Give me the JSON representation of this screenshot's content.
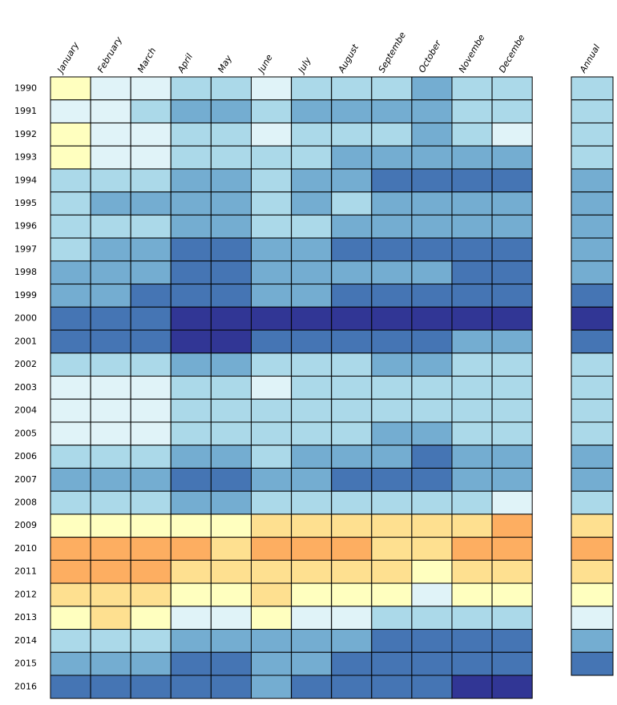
{
  "chart_data": {
    "type": "heatmap",
    "categories": [
      "January",
      "February",
      "March",
      "April",
      "May",
      "June",
      "July",
      "August",
      "Septembe",
      "October",
      "Novembe",
      "Decembe"
    ],
    "annual_label": "Annual",
    "rows": [
      "1990",
      "1991",
      "1992",
      "1993",
      "1994",
      "1995",
      "1996",
      "1997",
      "1998",
      "1999",
      "2000",
      "2001",
      "2002",
      "2003",
      "2004",
      "2005",
      "2006",
      "2007",
      "2008",
      "2009",
      "2010",
      "2011",
      "2012",
      "2013",
      "2014",
      "2015",
      "2016"
    ],
    "colors": [
      [
        "#ffffbf",
        "#e0f3f8",
        "#e0f3f8",
        "#abd9e9",
        "#abd9e9",
        "#e0f3f8",
        "#abd9e9",
        "#abd9e9",
        "#abd9e9",
        "#74add1",
        "#abd9e9",
        "#abd9e9"
      ],
      [
        "#e0f3f8",
        "#e0f3f8",
        "#abd9e9",
        "#74add1",
        "#74add1",
        "#abd9e9",
        "#74add1",
        "#74add1",
        "#74add1",
        "#74add1",
        "#abd9e9",
        "#abd9e9"
      ],
      [
        "#ffffbf",
        "#e0f3f8",
        "#e0f3f8",
        "#abd9e9",
        "#abd9e9",
        "#e0f3f8",
        "#abd9e9",
        "#abd9e9",
        "#abd9e9",
        "#74add1",
        "#abd9e9",
        "#e0f3f8"
      ],
      [
        "#ffffbf",
        "#e0f3f8",
        "#e0f3f8",
        "#abd9e9",
        "#abd9e9",
        "#abd9e9",
        "#abd9e9",
        "#74add1",
        "#74add1",
        "#74add1",
        "#74add1",
        "#74add1"
      ],
      [
        "#abd9e9",
        "#abd9e9",
        "#abd9e9",
        "#74add1",
        "#74add1",
        "#abd9e9",
        "#74add1",
        "#74add1",
        "#4575b4",
        "#4575b4",
        "#4575b4",
        "#4575b4"
      ],
      [
        "#abd9e9",
        "#74add1",
        "#74add1",
        "#74add1",
        "#74add1",
        "#abd9e9",
        "#74add1",
        "#abd9e9",
        "#74add1",
        "#74add1",
        "#74add1",
        "#74add1"
      ],
      [
        "#abd9e9",
        "#abd9e9",
        "#abd9e9",
        "#74add1",
        "#74add1",
        "#abd9e9",
        "#abd9e9",
        "#74add1",
        "#74add1",
        "#74add1",
        "#74add1",
        "#74add1"
      ],
      [
        "#abd9e9",
        "#74add1",
        "#74add1",
        "#4575b4",
        "#4575b4",
        "#74add1",
        "#74add1",
        "#4575b4",
        "#4575b4",
        "#4575b4",
        "#4575b4",
        "#4575b4"
      ],
      [
        "#74add1",
        "#74add1",
        "#74add1",
        "#4575b4",
        "#4575b4",
        "#74add1",
        "#74add1",
        "#74add1",
        "#74add1",
        "#74add1",
        "#4575b4",
        "#4575b4"
      ],
      [
        "#74add1",
        "#74add1",
        "#4575b4",
        "#4575b4",
        "#4575b4",
        "#74add1",
        "#74add1",
        "#4575b4",
        "#4575b4",
        "#4575b4",
        "#4575b4",
        "#4575b4"
      ],
      [
        "#4575b4",
        "#4575b4",
        "#4575b4",
        "#313695",
        "#313695",
        "#313695",
        "#313695",
        "#313695",
        "#313695",
        "#313695",
        "#313695",
        "#313695"
      ],
      [
        "#4575b4",
        "#4575b4",
        "#4575b4",
        "#313695",
        "#313695",
        "#4575b4",
        "#4575b4",
        "#4575b4",
        "#4575b4",
        "#4575b4",
        "#74add1",
        "#74add1"
      ],
      [
        "#abd9e9",
        "#abd9e9",
        "#abd9e9",
        "#74add1",
        "#74add1",
        "#abd9e9",
        "#abd9e9",
        "#abd9e9",
        "#74add1",
        "#74add1",
        "#abd9e9",
        "#abd9e9"
      ],
      [
        "#e0f3f8",
        "#e0f3f8",
        "#e0f3f8",
        "#abd9e9",
        "#abd9e9",
        "#e0f3f8",
        "#abd9e9",
        "#abd9e9",
        "#abd9e9",
        "#abd9e9",
        "#abd9e9",
        "#abd9e9"
      ],
      [
        "#e0f3f8",
        "#e0f3f8",
        "#e0f3f8",
        "#abd9e9",
        "#abd9e9",
        "#abd9e9",
        "#abd9e9",
        "#abd9e9",
        "#abd9e9",
        "#abd9e9",
        "#abd9e9",
        "#abd9e9"
      ],
      [
        "#e0f3f8",
        "#e0f3f8",
        "#e0f3f8",
        "#abd9e9",
        "#abd9e9",
        "#abd9e9",
        "#abd9e9",
        "#abd9e9",
        "#74add1",
        "#74add1",
        "#abd9e9",
        "#abd9e9"
      ],
      [
        "#abd9e9",
        "#abd9e9",
        "#abd9e9",
        "#74add1",
        "#74add1",
        "#abd9e9",
        "#74add1",
        "#74add1",
        "#74add1",
        "#4575b4",
        "#74add1",
        "#74add1"
      ],
      [
        "#74add1",
        "#74add1",
        "#74add1",
        "#4575b4",
        "#4575b4",
        "#74add1",
        "#74add1",
        "#4575b4",
        "#4575b4",
        "#4575b4",
        "#74add1",
        "#74add1"
      ],
      [
        "#abd9e9",
        "#abd9e9",
        "#abd9e9",
        "#74add1",
        "#74add1",
        "#abd9e9",
        "#abd9e9",
        "#abd9e9",
        "#abd9e9",
        "#abd9e9",
        "#abd9e9",
        "#e0f3f8"
      ],
      [
        "#ffffbf",
        "#ffffbf",
        "#ffffbf",
        "#ffffbf",
        "#ffffbf",
        "#fee090",
        "#fee090",
        "#fee090",
        "#fee090",
        "#fee090",
        "#fee090",
        "#fdae61"
      ],
      [
        "#fdae61",
        "#fdae61",
        "#fdae61",
        "#fdae61",
        "#fee090",
        "#fdae61",
        "#fdae61",
        "#fdae61",
        "#fee090",
        "#fee090",
        "#fdae61",
        "#fdae61"
      ],
      [
        "#fdae61",
        "#fdae61",
        "#fdae61",
        "#fee090",
        "#fee090",
        "#fee090",
        "#fee090",
        "#fee090",
        "#fee090",
        "#ffffbf",
        "#fee090",
        "#fee090"
      ],
      [
        "#fee090",
        "#fee090",
        "#fee090",
        "#ffffbf",
        "#ffffbf",
        "#fee090",
        "#ffffbf",
        "#ffffbf",
        "#ffffbf",
        "#e0f3f8",
        "#ffffbf",
        "#ffffbf"
      ],
      [
        "#ffffbf",
        "#fee090",
        "#ffffbf",
        "#e0f3f8",
        "#e0f3f8",
        "#ffffbf",
        "#e0f3f8",
        "#e0f3f8",
        "#abd9e9",
        "#abd9e9",
        "#abd9e9",
        "#abd9e9"
      ],
      [
        "#abd9e9",
        "#abd9e9",
        "#abd9e9",
        "#74add1",
        "#74add1",
        "#74add1",
        "#74add1",
        "#74add1",
        "#4575b4",
        "#4575b4",
        "#4575b4",
        "#4575b4"
      ],
      [
        "#74add1",
        "#74add1",
        "#74add1",
        "#4575b4",
        "#4575b4",
        "#74add1",
        "#74add1",
        "#4575b4",
        "#4575b4",
        "#4575b4",
        "#4575b4",
        "#4575b4"
      ],
      [
        "#4575b4",
        "#4575b4",
        "#4575b4",
        "#4575b4",
        "#4575b4",
        "#74add1",
        "#4575b4",
        "#4575b4",
        "#4575b4",
        "#4575b4",
        "#313695",
        "#313695"
      ]
    ],
    "annual_colors": [
      "#abd9e9",
      "#abd9e9",
      "#abd9e9",
      "#abd9e9",
      "#74add1",
      "#74add1",
      "#74add1",
      "#74add1",
      "#74add1",
      "#4575b4",
      "#313695",
      "#4575b4",
      "#abd9e9",
      "#abd9e9",
      "#abd9e9",
      "#abd9e9",
      "#74add1",
      "#74add1",
      "#abd9e9",
      "#fee090",
      "#fdae61",
      "#fee090",
      "#ffffbf",
      "#e0f3f8",
      "#74add1",
      "#4575b4",
      null
    ]
  }
}
